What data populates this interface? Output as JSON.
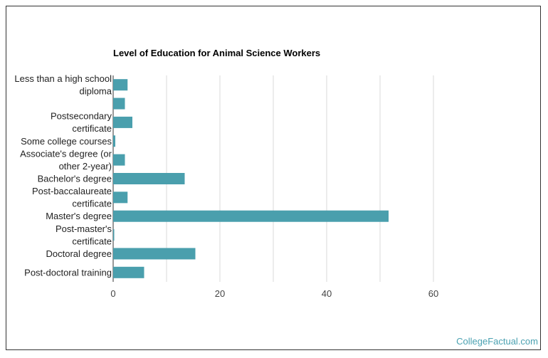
{
  "page": {
    "credit": "CollegeFactual.com"
  },
  "chart_data": {
    "type": "bar",
    "orientation": "horizontal",
    "title": "Level of Education for Animal Science Workers",
    "categories": [
      [
        "Less than a high school",
        "diploma"
      ],
      [
        ""
      ],
      [
        "Postsecondary",
        "certificate"
      ],
      [
        "Some college courses"
      ],
      [
        "Associate's degree (or",
        "other 2-year)"
      ],
      [
        "Bachelor's degree"
      ],
      [
        "Post-baccalaureate",
        "certificate"
      ],
      [
        "Master's degree"
      ],
      [
        "Post-master's",
        "certificate"
      ],
      [
        "Doctoral degree"
      ],
      [
        "Post-doctoral training"
      ]
    ],
    "values": [
      2.7,
      2.2,
      3.6,
      0.4,
      2.2,
      13.4,
      2.7,
      51.6,
      0.2,
      15.4,
      5.8
    ],
    "xlim": [
      0,
      80
    ],
    "xticks": [
      0,
      20,
      40,
      60
    ],
    "grid": true,
    "bar_color": "#4a9fad",
    "grid_color": "#d8d8d8"
  }
}
